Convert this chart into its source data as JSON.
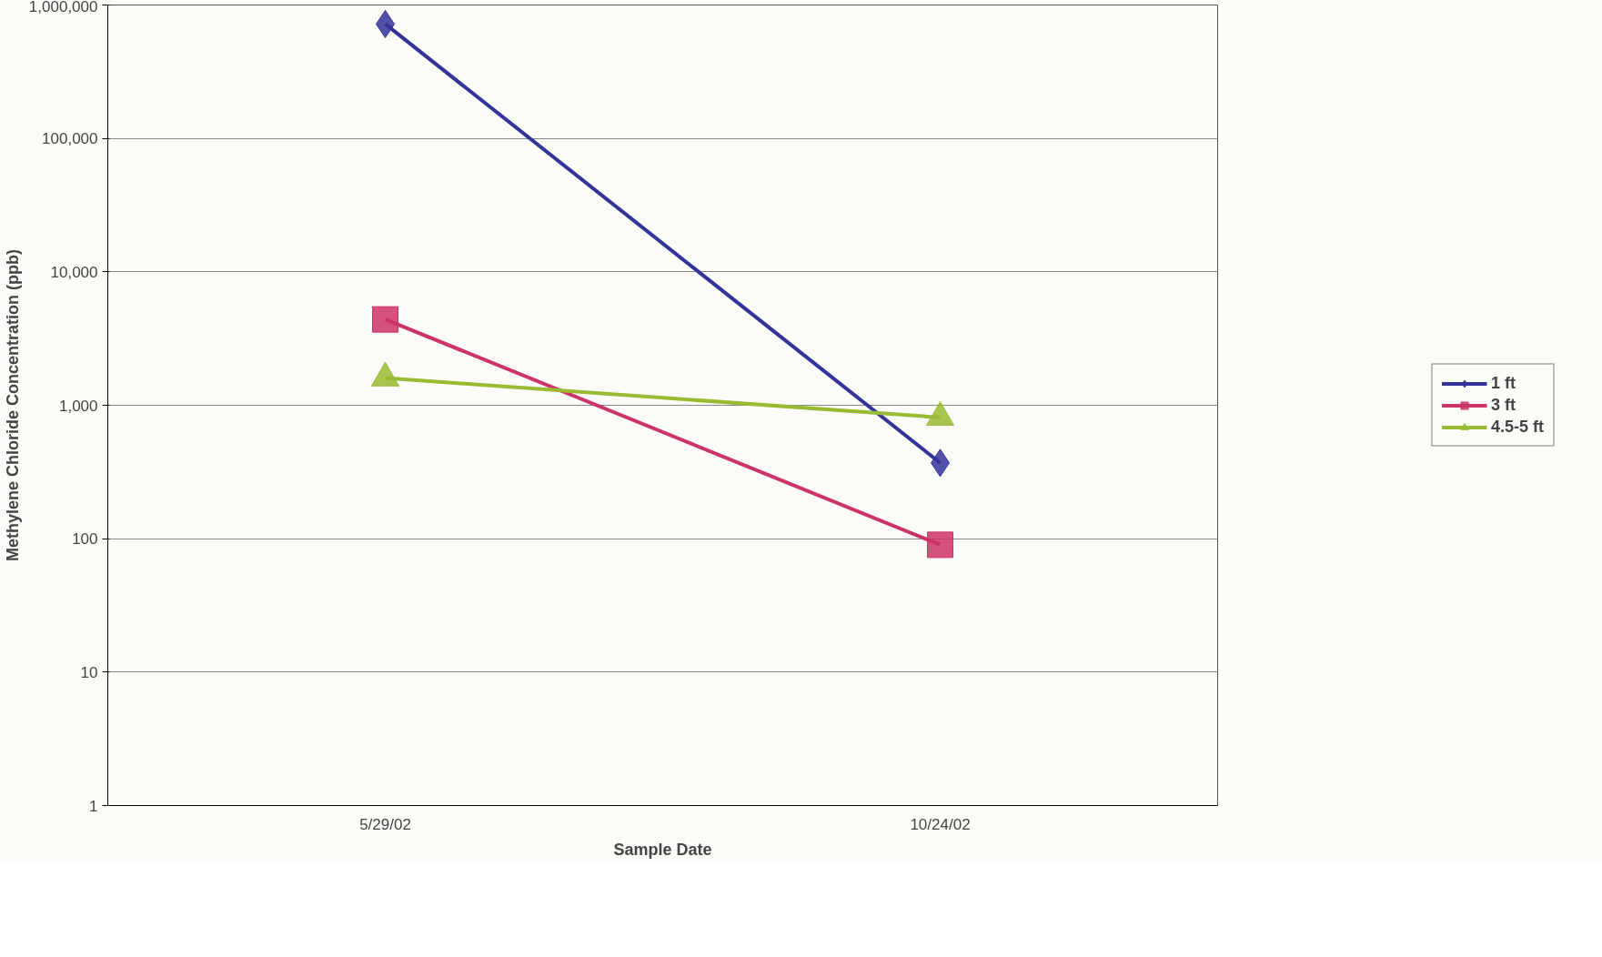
{
  "chart_data": {
    "type": "line",
    "xlabel": "Sample Date",
    "ylabel": "Methylene Chloride Concentration (ppb)",
    "categories": [
      "5/29/02",
      "10/24/02"
    ],
    "series": [
      {
        "name": "1 ft",
        "color": "#333399",
        "marker": "diamond",
        "values": [
          720000,
          370
        ]
      },
      {
        "name": "3 ft",
        "color": "#cc3366",
        "marker": "square",
        "values": [
          4400,
          90
        ]
      },
      {
        "name": "4.5-5 ft",
        "color": "#99bb33",
        "marker": "triangle",
        "values": [
          1600,
          810
        ]
      }
    ],
    "log": "y",
    "ylim": [
      1,
      1000000
    ],
    "yticks": [
      1,
      10,
      100,
      {
        "value": 1000,
        "label": "1,000"
      },
      {
        "value": 10000,
        "label": "10,000"
      },
      {
        "value": 100000,
        "label": "100,000"
      },
      {
        "value": 1000000,
        "label": "1,000,000"
      }
    ],
    "grid": "y",
    "legend": "right",
    "line_style": "solid"
  }
}
